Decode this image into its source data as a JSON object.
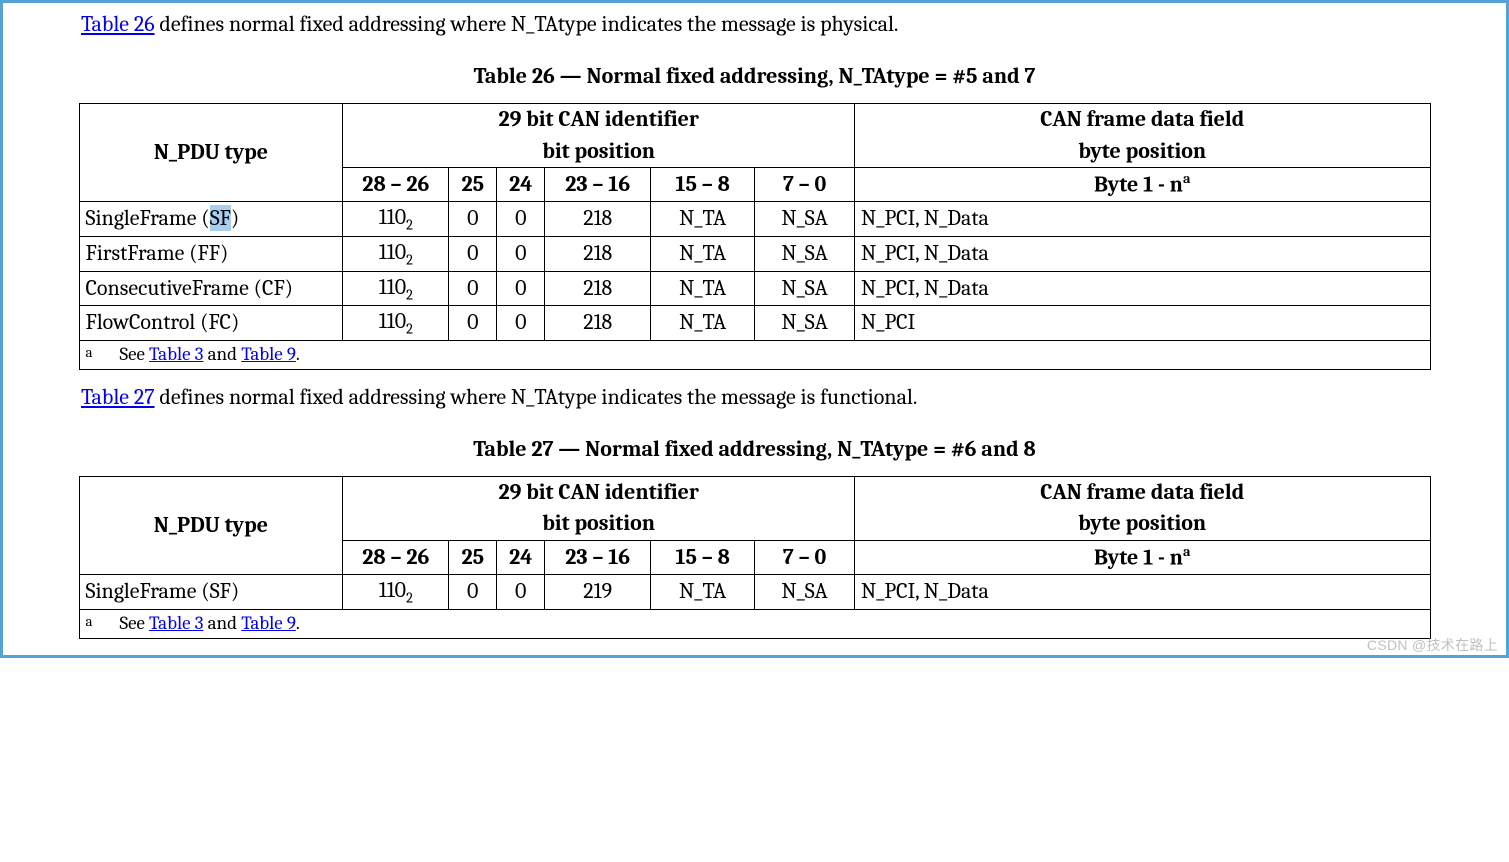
{
  "intro1": {
    "link": "Table 26",
    "rest": " defines normal fixed addressing where N_TAtype indicates the message is physical."
  },
  "caption26": "Table 26 — Normal fixed addressing, N_TAtype = #5 and 7",
  "intro2": {
    "link": "Table 27",
    "rest": " defines normal fixed addressing where N_TAtype indicates the message is functional."
  },
  "caption27": "Table 27 — Normal fixed addressing, N_TAtype = #6 and 8",
  "headers": {
    "npdu": "N_PDU type",
    "can_id": "29 bit CAN identifier",
    "bit_pos": "bit position",
    "can_frame": "CAN frame data field",
    "byte_pos": "byte position",
    "c2826": "28 – 26",
    "c25": "25",
    "c24": "24",
    "c2316": "23 – 16",
    "c158": "15 – 8",
    "c70": "7 – 0",
    "byte1n_pre": "Byte 1 - n",
    "byte1n_sup": "a"
  },
  "table26": {
    "rows": [
      {
        "npdu_pre": "SingleFrame (",
        "npdu_hl": "SF",
        "npdu_post": ")",
        "b2826_pre": "110",
        "b2826_sub": "2",
        "b25": "0",
        "b24": "0",
        "b2316": "218",
        "b158": "N_TA",
        "b70": "N_SA",
        "data": "N_PCI, N_Data"
      },
      {
        "npdu_plain": "FirstFrame (FF)",
        "b2826_pre": "110",
        "b2826_sub": "2",
        "b25": "0",
        "b24": "0",
        "b2316": "218",
        "b158": "N_TA",
        "b70": "N_SA",
        "data": "N_PCI, N_Data"
      },
      {
        "npdu_plain": "ConsecutiveFrame (CF)",
        "b2826_pre": "110",
        "b2826_sub": "2",
        "b25": "0",
        "b24": "0",
        "b2316": "218",
        "b158": "N_TA",
        "b70": "N_SA",
        "data": "N_PCI, N_Data"
      },
      {
        "npdu_plain": "FlowControl (FC)",
        "b2826_pre": "110",
        "b2826_sub": "2",
        "b25": "0",
        "b24": "0",
        "b2316": "218",
        "b158": "N_TA",
        "b70": "N_SA",
        "data": "N_PCI"
      }
    ],
    "footnote": {
      "label": "a",
      "pre": "See ",
      "link1": "Table 3",
      "mid": " and ",
      "link2": "Table 9",
      "post": "."
    }
  },
  "table27": {
    "rows": [
      {
        "npdu_plain": "SingleFrame (SF)",
        "b2826_pre": "110",
        "b2826_sub": "2",
        "b25": "0",
        "b24": "0",
        "b2316": "219",
        "b158": "N_TA",
        "b70": "N_SA",
        "data": "N_PCI, N_Data"
      }
    ],
    "footnote": {
      "label": "a",
      "pre": "See ",
      "link1": "Table 3",
      "mid": " and ",
      "link2": "Table 9",
      "post": "."
    }
  },
  "watermark": "CSDN @技术在路上"
}
